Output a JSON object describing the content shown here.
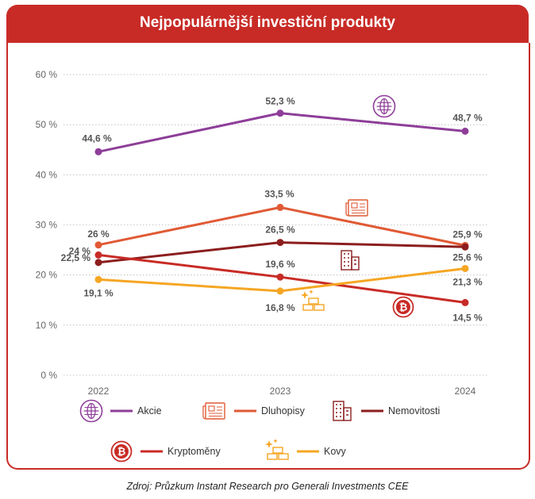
{
  "header": {
    "title": "Nejpopulárnější investiční produkty"
  },
  "source": "Zdroj: Průzkum Instant Research pro Generali Investments CEE",
  "chart_data": {
    "type": "line",
    "title": "Nejpopulárnější investiční produkty",
    "categories": [
      "2022",
      "2023",
      "2024"
    ],
    "ylim": [
      0,
      60
    ],
    "yticks": [
      0,
      10,
      20,
      30,
      40,
      50,
      60
    ],
    "ytick_labels": [
      "0 %",
      "10 %",
      "20 %",
      "30 %",
      "40 %",
      "50 %",
      "60 %"
    ],
    "grid": true,
    "legend": "bottom",
    "series": [
      {
        "name": "Akcie",
        "values": [
          44.6,
          52.3,
          48.7
        ],
        "labels": [
          "44,6 %",
          "52,3 %",
          "48,7 %"
        ],
        "color": "#8e3e99",
        "icon": "globe-icon"
      },
      {
        "name": "Dluhopisy",
        "values": [
          26,
          33.5,
          25.9
        ],
        "labels": [
          "26 %",
          "33,5 %",
          "25,9 %"
        ],
        "color": "#e05a35",
        "icon": "newspaper-icon"
      },
      {
        "name": "Nemovitosti",
        "values": [
          22.5,
          26.5,
          25.6
        ],
        "labels": [
          "22,5 %",
          "26,5 %",
          "25,6 %"
        ],
        "color": "#8c1e1e",
        "icon": "buildings-icon"
      },
      {
        "name": "Kryptoměny",
        "values": [
          24,
          19.6,
          14.5
        ],
        "labels": [
          "24 %",
          "19,6 %",
          "14,5 %"
        ],
        "color": "#c82b26",
        "icon": "bitcoin-icon"
      },
      {
        "name": "Kovy",
        "values": [
          19.1,
          16.8,
          21.3
        ],
        "labels": [
          "19,1 %",
          "16,8 %",
          "21,3 %"
        ],
        "color": "#f5a623",
        "icon": "gold-bars-icon"
      }
    ]
  }
}
